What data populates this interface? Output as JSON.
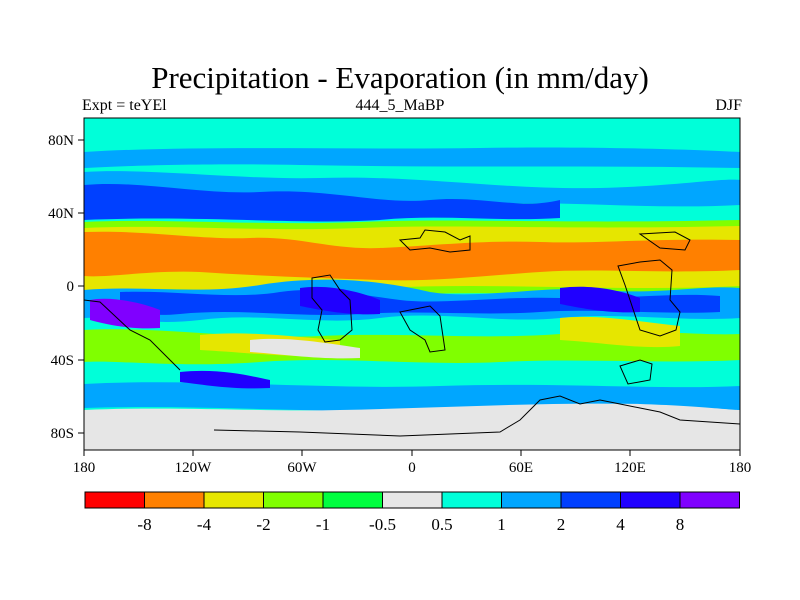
{
  "title": "Precipitation - Evaporation (in mm/day)",
  "subtitle_left": "Expt = teYEl",
  "subtitle_center": "444_5_MaBP",
  "subtitle_right": "DJF",
  "x_ticks": [
    "180",
    "120W",
    "60W",
    "0",
    "60E",
    "120E",
    "180"
  ],
  "y_ticks": [
    "80N",
    "40N",
    "0",
    "40S",
    "80S"
  ],
  "colorbar": {
    "labels": [
      "-8",
      "-4",
      "-2",
      "-1",
      "-0.5",
      "0.5",
      "1",
      "2",
      "4",
      "8"
    ],
    "colors": [
      "#ff0000",
      "#ff8000",
      "#e6e600",
      "#80ff00",
      "#00ff40",
      "#e6e6e6",
      "#00ffd9",
      "#00a6ff",
      "#0040ff",
      "#2000ff",
      "#8000ff"
    ]
  },
  "colors": {
    "land_outline": "#000000",
    "background": "#ffffff"
  }
}
